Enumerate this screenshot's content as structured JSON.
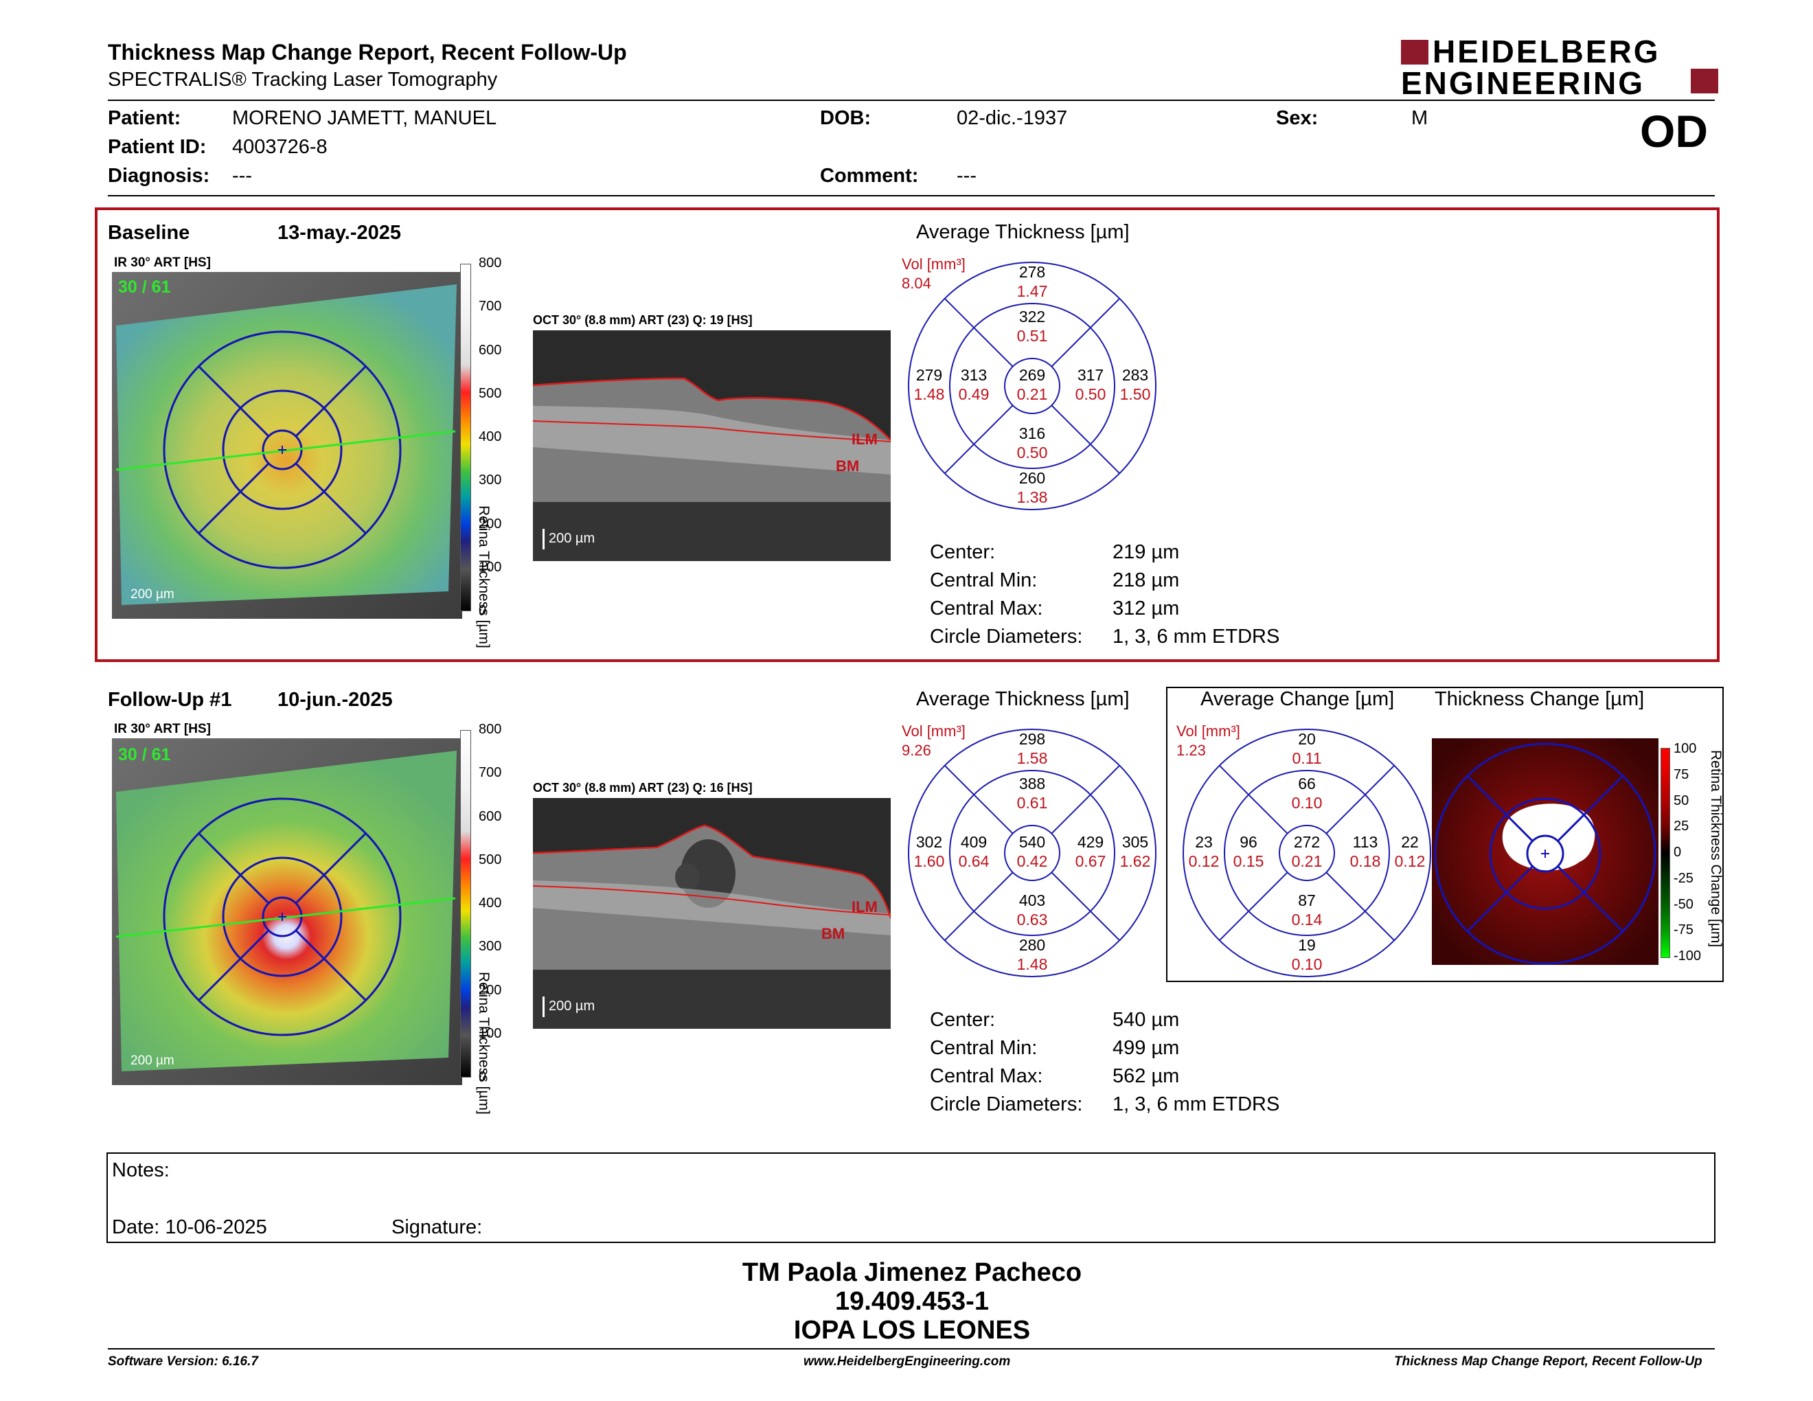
{
  "report": {
    "title": "Thickness Map Change Report, Recent Follow-Up",
    "subtitle": "SPECTRALIS® Tracking Laser Tomography",
    "logo_line1": "HEIDELBERG",
    "logo_line2": "ENGINEERING",
    "eye": "OD"
  },
  "patient": {
    "name_label": "Patient:",
    "name": "MORENO JAMETT, MANUEL",
    "id_label": "Patient ID:",
    "id": "4003726-8",
    "diagnosis_label": "Diagnosis:",
    "diagnosis": "---",
    "dob_label": "DOB:",
    "dob": "02-dic.-1937",
    "comment_label": "Comment:",
    "comment": "---",
    "sex_label": "Sex:",
    "sex": "M"
  },
  "baseline": {
    "label": "Baseline",
    "date": "13-may.-2025",
    "ir_label": "IR 30° ART [HS]",
    "ir_counter": "30 / 61",
    "scalebar": "200 µm",
    "oct_label": "OCT 30° (8.8 mm) ART (23) Q: 19 [HS]",
    "oct_scalebar": "200 µm",
    "ilm": "ILM",
    "bm": "BM",
    "colorbar_title": "Retina Thickness [µm]",
    "colorbar_ticks": [
      "800",
      "700",
      "600",
      "500",
      "400",
      "300",
      "200",
      "100",
      "0"
    ],
    "avg_title": "Average Thickness [µm]",
    "vol_label": "Vol [mm³]",
    "vol_total": "8.04",
    "grid": {
      "outer_sup": [
        "278",
        "1.47"
      ],
      "inner_sup": [
        "322",
        "0.51"
      ],
      "outer_temp": [
        "279",
        "1.48"
      ],
      "inner_temp": [
        "313",
        "0.49"
      ],
      "center": [
        "269",
        "0.21"
      ],
      "inner_nas": [
        "317",
        "0.50"
      ],
      "outer_nas": [
        "283",
        "1.50"
      ],
      "inner_inf": [
        "316",
        "0.50"
      ],
      "outer_inf": [
        "260",
        "1.38"
      ]
    },
    "stats": [
      {
        "label": "Center:",
        "value": "219 µm"
      },
      {
        "label": "Central Min:",
        "value": "218 µm"
      },
      {
        "label": "Central Max:",
        "value": "312 µm"
      },
      {
        "label": "Circle Diameters:",
        "value": "1, 3, 6 mm ETDRS"
      }
    ]
  },
  "followup": {
    "label": "Follow-Up #1",
    "date": "10-jun.-2025",
    "ir_label": "IR 30° ART [HS]",
    "ir_counter": "30 / 61",
    "scalebar": "200 µm",
    "oct_label": "OCT 30° (8.8 mm) ART (23) Q: 16 [HS]",
    "oct_scalebar": "200 µm",
    "ilm": "ILM",
    "bm": "BM",
    "colorbar_title": "Retina Thickness [µm]",
    "colorbar_ticks": [
      "800",
      "700",
      "600",
      "500",
      "400",
      "300",
      "200",
      "100",
      "0"
    ],
    "avg_title": "Average Thickness [µm]",
    "vol_label": "Vol [mm³]",
    "vol_total": "9.26",
    "grid": {
      "outer_sup": [
        "298",
        "1.58"
      ],
      "inner_sup": [
        "388",
        "0.61"
      ],
      "outer_temp": [
        "302",
        "1.60"
      ],
      "inner_temp": [
        "409",
        "0.64"
      ],
      "center": [
        "540",
        "0.42"
      ],
      "inner_nas": [
        "429",
        "0.67"
      ],
      "outer_nas": [
        "305",
        "1.62"
      ],
      "inner_inf": [
        "403",
        "0.63"
      ],
      "outer_inf": [
        "280",
        "1.48"
      ]
    },
    "stats": [
      {
        "label": "Center:",
        "value": "540 µm"
      },
      {
        "label": "Central Min:",
        "value": "499 µm"
      },
      {
        "label": "Central Max:",
        "value": "562 µm"
      },
      {
        "label": "Circle Diameters:",
        "value": "1, 3, 6 mm ETDRS"
      }
    ],
    "change_title": "Average Change [µm]",
    "change_vol_label": "Vol [mm³]",
    "change_vol_total": "1.23",
    "change_grid": {
      "outer_sup": [
        "20",
        "0.11"
      ],
      "inner_sup": [
        "66",
        "0.10"
      ],
      "outer_temp": [
        "23",
        "0.12"
      ],
      "inner_temp": [
        "96",
        "0.15"
      ],
      "center": [
        "272",
        "0.21"
      ],
      "inner_nas": [
        "113",
        "0.18"
      ],
      "outer_nas": [
        "22",
        "0.12"
      ],
      "inner_inf": [
        "87",
        "0.14"
      ],
      "outer_inf": [
        "19",
        "0.10"
      ]
    },
    "thickness_change_title": "Thickness Change [µm]",
    "change_colorbar_title": "Retina Thickness Change [µm]",
    "change_colorbar_ticks": [
      "100",
      "75",
      "50",
      "25",
      "0",
      "-25",
      "-50",
      "-75",
      "-100"
    ]
  },
  "notes": {
    "label": "Notes:",
    "date_label": "Date: 10-06-2025",
    "signature_label": "Signature:"
  },
  "signature_block": {
    "name": "TM Paola Jimenez Pacheco",
    "rut": "19.409.453-1",
    "institution": "IOPA LOS LEONES"
  },
  "footer": {
    "software": "Software Version: 6.16.7",
    "website": "www.HeidelbergEngineering.com",
    "report_name": "Thickness Map Change Report, Recent Follow-Up"
  },
  "colors": {
    "accent_red": "#c0121b",
    "frame_red": "#b0101a",
    "grid_blue": "#1b1bb0",
    "logo_maroon": "#8c1a2b"
  }
}
